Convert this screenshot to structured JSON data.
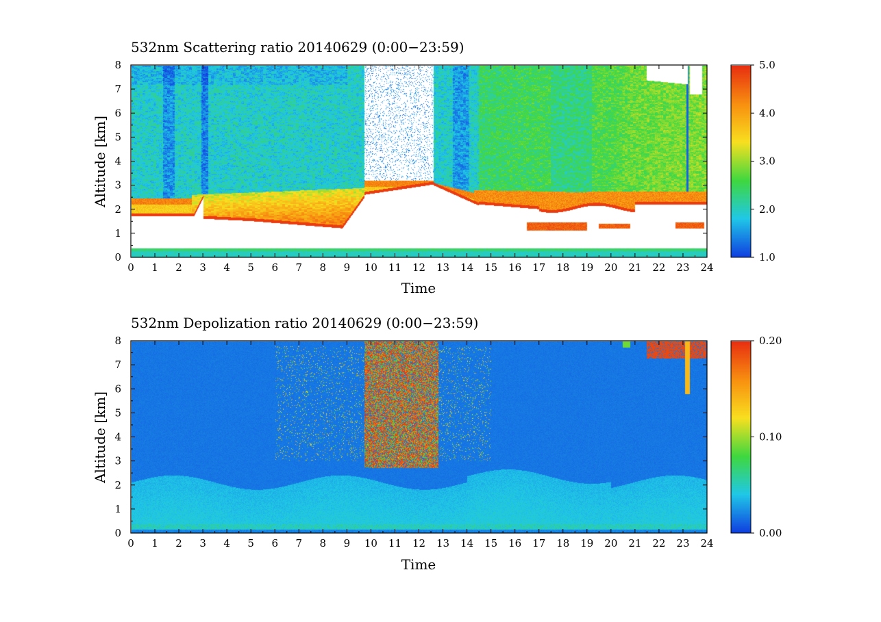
{
  "chart_data": [
    {
      "type": "heatmap",
      "title": "532nm Scattering ratio  20140629 (0:00−23:59)",
      "xlabel": "Time",
      "ylabel": "Altitude [km]",
      "xlim": [
        0,
        24
      ],
      "ylim": [
        0,
        8
      ],
      "x_ticks": [
        "0",
        "1",
        "2",
        "3",
        "4",
        "5",
        "6",
        "7",
        "8",
        "9",
        "10",
        "11",
        "12",
        "13",
        "14",
        "15",
        "16",
        "17",
        "18",
        "19",
        "20",
        "21",
        "22",
        "23",
        "24"
      ],
      "y_ticks": [
        "0",
        "1",
        "2",
        "3",
        "4",
        "5",
        "6",
        "7",
        "8"
      ],
      "colorbar": {
        "range": [
          1.0,
          5.0
        ],
        "tick_labels": [
          "1.0",
          "2.0",
          "3.0",
          "4.0",
          "5.0"
        ],
        "colors": [
          "#1040e0",
          "#20c8e8",
          "#40d840",
          "#f8e020",
          "#f89010",
          "#e83010"
        ]
      },
      "features": {
        "background_value": 2.0,
        "low_cloud_white_region": "0.3-2.5 km over 0-24 h, rising to ~3 km at 9.7-14 h",
        "mid_gap_white": "9.7-12.6 h above 3 km",
        "cloud_edge_value": 4.5,
        "afternoon_aerosol_value": 2.8
      }
    },
    {
      "type": "heatmap",
      "title": "532nm Depolization ratio  20140629 (0:00−23:59)",
      "xlabel": "Time",
      "ylabel": "Altitude [km]",
      "xlim": [
        0,
        24
      ],
      "ylim": [
        0,
        8
      ],
      "x_ticks": [
        "0",
        "1",
        "2",
        "3",
        "4",
        "5",
        "6",
        "7",
        "8",
        "9",
        "10",
        "11",
        "12",
        "13",
        "14",
        "15",
        "16",
        "17",
        "18",
        "19",
        "20",
        "21",
        "22",
        "23",
        "24"
      ],
      "y_ticks": [
        "0",
        "1",
        "2",
        "3",
        "4",
        "5",
        "6",
        "7",
        "8"
      ],
      "colorbar": {
        "range": [
          0.0,
          0.2
        ],
        "tick_labels": [
          "0.00",
          "0.10",
          "0.20"
        ],
        "colors": [
          "#1040e0",
          "#20c8e8",
          "#40d840",
          "#f8e020",
          "#f89010",
          "#e83010"
        ]
      },
      "features": {
        "background_value": 0.015,
        "boundary_layer_value": 0.045,
        "high_depol_region": "9.7-12.8 h, 3-8 km, values up to 0.20",
        "cirrus_value": 0.2
      }
    }
  ]
}
